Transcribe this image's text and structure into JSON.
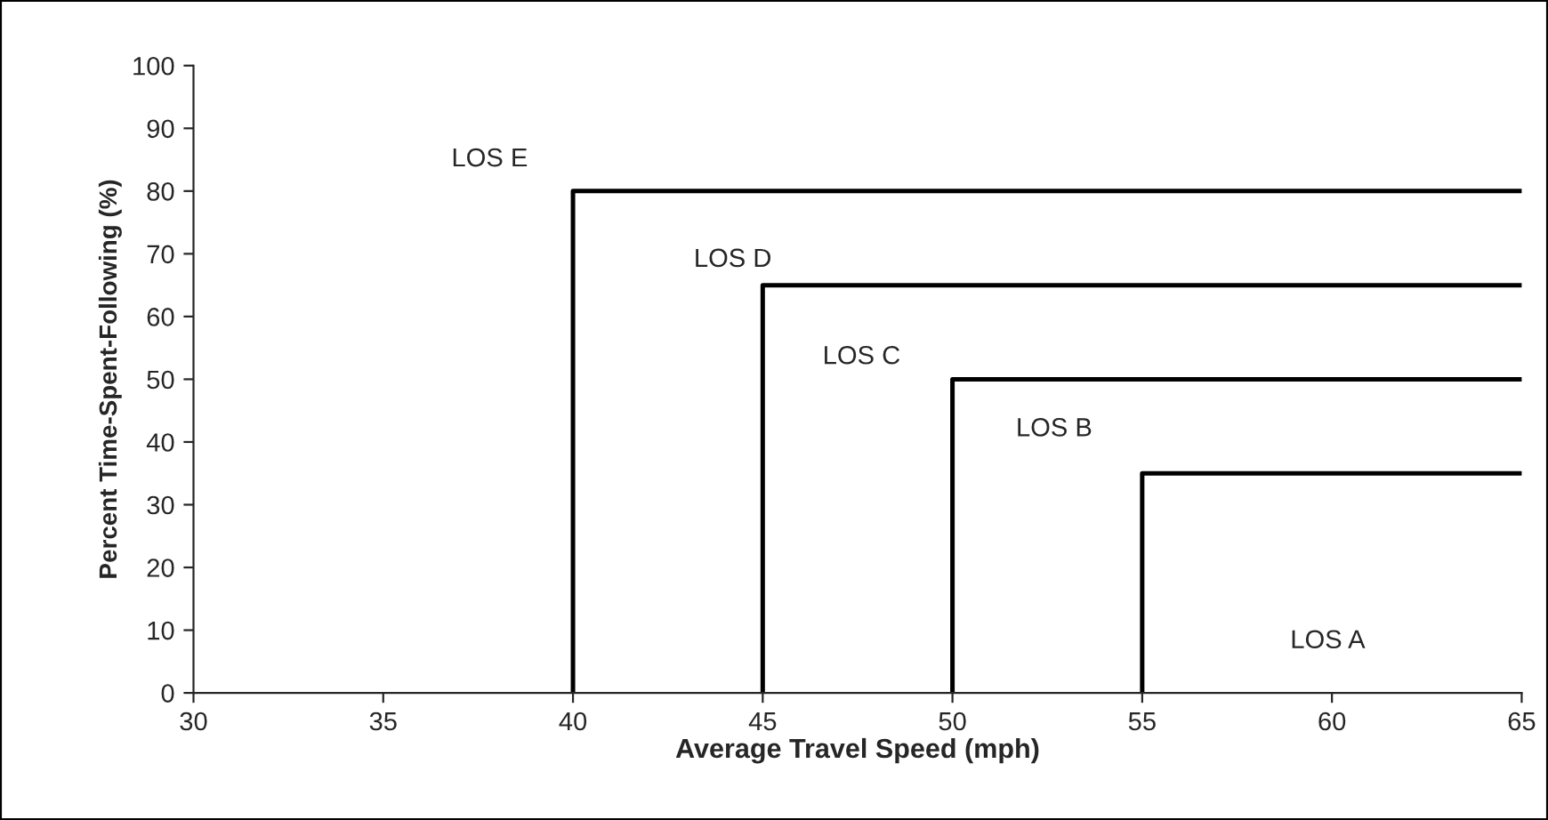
{
  "chart_data": {
    "type": "line",
    "xlabel": "Average Travel Speed (mph)",
    "ylabel": "Percent Time-Spent-Following (%)",
    "xlim": [
      30,
      65
    ],
    "xticks": [
      30,
      35,
      40,
      45,
      50,
      55,
      60,
      65
    ],
    "ylim": [
      0,
      100
    ],
    "yticks": [
      0,
      10,
      20,
      30,
      40,
      50,
      60,
      70,
      80,
      90,
      100
    ],
    "grid": false,
    "marker": "none",
    "line_style": "solid",
    "series": [
      {
        "color": "#000000",
        "x": [
          40,
          40,
          65
        ],
        "values": [
          0,
          80,
          80
        ]
      },
      {
        "color": "#000000",
        "x": [
          45,
          45,
          65
        ],
        "values": [
          0,
          65,
          65
        ]
      },
      {
        "color": "#000000",
        "x": [
          50,
          50,
          65
        ],
        "values": [
          0,
          50,
          50
        ]
      },
      {
        "color": "#000000",
        "x": [
          55,
          55,
          65
        ],
        "values": [
          0,
          35,
          35
        ]
      }
    ],
    "annotations": [
      "LOS E",
      "LOS D",
      "LOS C",
      "LOS B",
      "LOS A"
    ]
  }
}
